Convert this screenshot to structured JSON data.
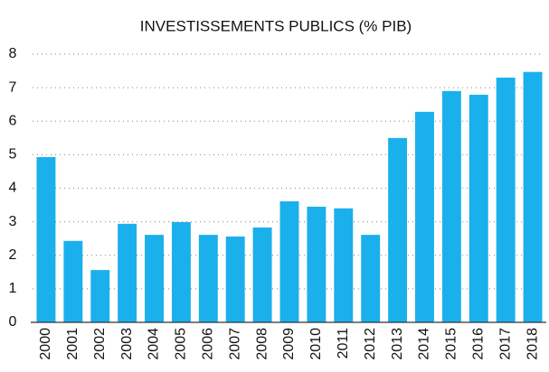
{
  "chart_data": {
    "type": "bar",
    "title": "INVESTISSEMENTS PUBLICS (% PIB)",
    "categories": [
      "2000",
      "2001",
      "2002",
      "2003",
      "2004",
      "2005",
      "2006",
      "2007",
      "2008",
      "2009",
      "2010",
      "2011",
      "2012",
      "2013",
      "2014",
      "2015",
      "2016",
      "2017",
      "2018"
    ],
    "values": [
      4.93,
      2.43,
      1.56,
      2.94,
      2.61,
      2.99,
      2.61,
      2.56,
      2.83,
      3.61,
      3.45,
      3.4,
      2.61,
      5.5,
      6.28,
      6.9,
      6.79,
      7.3,
      7.47
    ],
    "color": "#1ab0ec",
    "ylim": [
      0,
      8
    ],
    "yticks": [
      0,
      1,
      2,
      3,
      4,
      5,
      6,
      7,
      8
    ],
    "grid": true
  }
}
